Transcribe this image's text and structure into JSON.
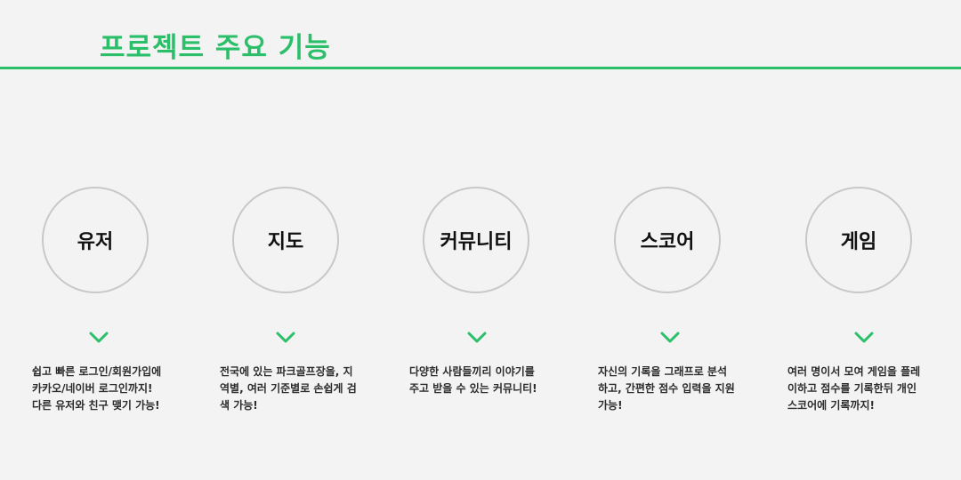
{
  "page": {
    "title": "프로젝트 주요 기능"
  },
  "colors": {
    "accent": "#2bbf6a",
    "background": "#f3f3f3",
    "circle_border": "#c8c8c8"
  },
  "features": [
    {
      "name": "유저",
      "icon": "chevron-down-icon",
      "description": [
        "쉽고 빠른 로그인/회원가입에",
        "카카오/네이버 로그인까지!",
        "다른 유저와 친구 맺기 가능!"
      ]
    },
    {
      "name": "지도",
      "icon": "chevron-down-icon",
      "description": [
        "전국에 있는 파크골프장을, 지",
        "역별, 여러 기준별로 손쉽게 검",
        "색 가능!"
      ]
    },
    {
      "name": "커뮤니티",
      "icon": "chevron-down-icon",
      "description": [
        "다양한 사람들끼리 이야기를",
        "주고 받을 수 있는 커뮤니티!"
      ]
    },
    {
      "name": "스코어",
      "icon": "chevron-down-icon",
      "description": [
        "자신의 기록을 그래프로 분석",
        "하고, 간편한 점수 입력을 지원",
        "가능!"
      ]
    },
    {
      "name": "게임",
      "icon": "chevron-down-icon",
      "description": [
        "여러 명이서 모여 게임을 플레",
        "이하고 점수를 기록한뒤 개인",
        "스코어에 기록까지!"
      ]
    }
  ]
}
